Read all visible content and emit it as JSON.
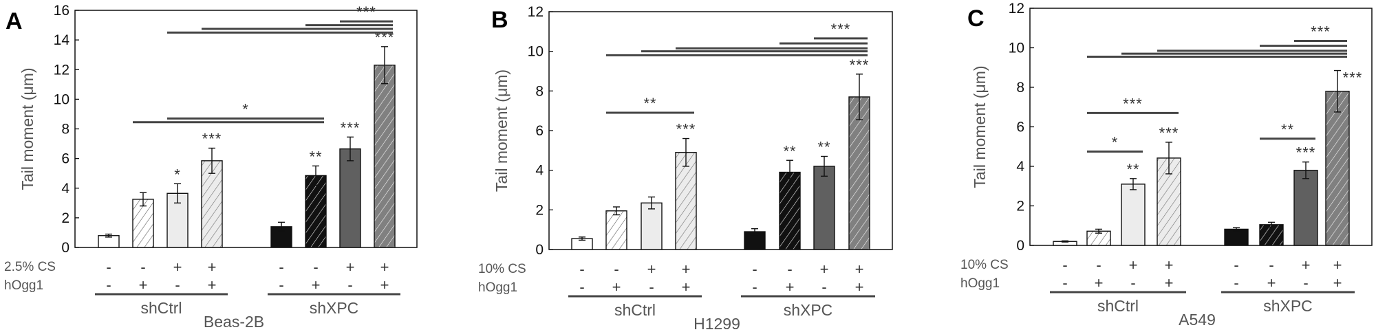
{
  "chart_data": [
    {
      "type": "bar",
      "panel_label": "A",
      "ylabel": "Tail moment (μm)",
      "ylim": [
        0,
        16
      ],
      "yticks": [
        0,
        2,
        4,
        6,
        8,
        10,
        12,
        14,
        16
      ],
      "cell_line": "Beas-2B",
      "row_labels": [
        "2.5% CS",
        "hOgg1"
      ],
      "groups": [
        "shCtrl",
        "shXPC"
      ],
      "cs": [
        "-",
        "-",
        "+",
        "+",
        "-",
        "-",
        "+",
        "+"
      ],
      "hogg1": [
        "-",
        "+",
        "-",
        "+",
        "-",
        "+",
        "-",
        "+"
      ],
      "values": [
        0.8,
        3.25,
        3.65,
        5.85,
        1.4,
        4.85,
        6.65,
        12.3
      ],
      "errors": [
        0.1,
        0.45,
        0.65,
        0.85,
        0.3,
        0.65,
        0.8,
        1.25
      ],
      "significance": [
        "",
        "",
        "*",
        "***",
        "",
        "**",
        "***",
        "***"
      ],
      "brackets": [
        {
          "from": 1,
          "to": 5,
          "y": 8.45,
          "label": ""
        },
        {
          "from": 2,
          "to": 5,
          "y": 8.7,
          "label": "*"
        },
        {
          "from": 2,
          "to": 7,
          "y": 14.5,
          "label": ""
        },
        {
          "from": 3,
          "to": 7,
          "y": 14.75,
          "label": ""
        },
        {
          "from": 5,
          "to": 7,
          "y": 15.0,
          "label": ""
        },
        {
          "from": 6,
          "to": 7,
          "y": 15.25,
          "label": "***"
        }
      ]
    },
    {
      "type": "bar",
      "panel_label": "B",
      "ylabel": "Tail moment (μm)",
      "ylim": [
        0,
        12
      ],
      "yticks": [
        0,
        2,
        4,
        6,
        8,
        10,
        12
      ],
      "cell_line": "H1299",
      "row_labels": [
        "10% CS",
        "hOgg1"
      ],
      "groups": [
        "shCtrl",
        "shXPC"
      ],
      "cs": [
        "-",
        "-",
        "+",
        "+",
        "-",
        "-",
        "+",
        "+"
      ],
      "hogg1": [
        "-",
        "+",
        "-",
        "+",
        "-",
        "+",
        "-",
        "+"
      ],
      "values": [
        0.55,
        1.95,
        2.35,
        4.9,
        0.9,
        3.9,
        4.2,
        7.7
      ],
      "errors": [
        0.08,
        0.2,
        0.3,
        0.7,
        0.15,
        0.6,
        0.5,
        1.15
      ],
      "significance": [
        "",
        "",
        "",
        "***",
        "",
        "**",
        "**",
        "***"
      ],
      "brackets": [
        {
          "from": 1,
          "to": 3,
          "y": 6.9,
          "label": "**"
        },
        {
          "from": 1,
          "to": 7,
          "y": 9.8,
          "label": ""
        },
        {
          "from": 2,
          "to": 7,
          "y": 10.0,
          "label": ""
        },
        {
          "from": 3,
          "to": 7,
          "y": 10.15,
          "label": ""
        },
        {
          "from": 5,
          "to": 7,
          "y": 10.4,
          "label": ""
        },
        {
          "from": 6,
          "to": 7,
          "y": 10.65,
          "label": "***"
        }
      ]
    },
    {
      "type": "bar",
      "panel_label": "C",
      "ylabel": "Tail moment (μm)",
      "ylim": [
        0,
        12
      ],
      "yticks": [
        0,
        2,
        4,
        6,
        8,
        10,
        12
      ],
      "cell_line": "A549",
      "row_labels": [
        "10% CS",
        "hOgg1"
      ],
      "groups": [
        "shCtrl",
        "shXPC"
      ],
      "cs": [
        "-",
        "-",
        "+",
        "+",
        "-",
        "-",
        "+",
        "+"
      ],
      "hogg1": [
        "-",
        "+",
        "-",
        "+",
        "-",
        "+",
        "-",
        "+"
      ],
      "values": [
        0.2,
        0.72,
        3.1,
        4.42,
        0.82,
        1.05,
        3.8,
        7.8
      ],
      "errors": [
        0.03,
        0.1,
        0.28,
        0.8,
        0.08,
        0.12,
        0.42,
        1.05
      ],
      "significance": [
        "",
        "",
        "**",
        "***",
        "",
        "",
        "***",
        "***"
      ],
      "brackets": [
        {
          "from": 1,
          "to": 2,
          "y": 4.75,
          "label": "*"
        },
        {
          "from": 1,
          "to": 3,
          "y": 6.7,
          "label": "***"
        },
        {
          "from": 5,
          "to": 6,
          "y": 5.4,
          "label": "**"
        },
        {
          "from": 1,
          "to": 7,
          "y": 9.55,
          "label": ""
        },
        {
          "from": 2,
          "to": 7,
          "y": 9.7,
          "label": ""
        },
        {
          "from": 3,
          "to": 7,
          "y": 9.85,
          "label": ""
        },
        {
          "from": 5,
          "to": 7,
          "y": 10.1,
          "label": ""
        },
        {
          "from": 6,
          "to": 7,
          "y": 10.35,
          "label": "***"
        }
      ]
    }
  ],
  "bar_styles": [
    {
      "fill": "#ffffff",
      "hatch": "",
      "hatch_color": "#666666"
    },
    {
      "fill": "#ffffff",
      "hatch": "diagonal",
      "hatch_color": "#666666"
    },
    {
      "fill": "#ececec",
      "hatch": "",
      "hatch_color": "#666666"
    },
    {
      "fill": "#ececec",
      "hatch": "diagonal",
      "hatch_color": "#777777"
    },
    {
      "fill": "#111111",
      "hatch": "",
      "hatch_color": "#ffffff"
    },
    {
      "fill": "#111111",
      "hatch": "diagonal",
      "hatch_color": "#dddddd"
    },
    {
      "fill": "#606060",
      "hatch": "",
      "hatch_color": "#ffffff"
    },
    {
      "fill": "#808080",
      "hatch": "diagonal",
      "hatch_color": "#eeeeee"
    }
  ],
  "colors": {
    "line": "#444444",
    "axis": "#111111"
  }
}
